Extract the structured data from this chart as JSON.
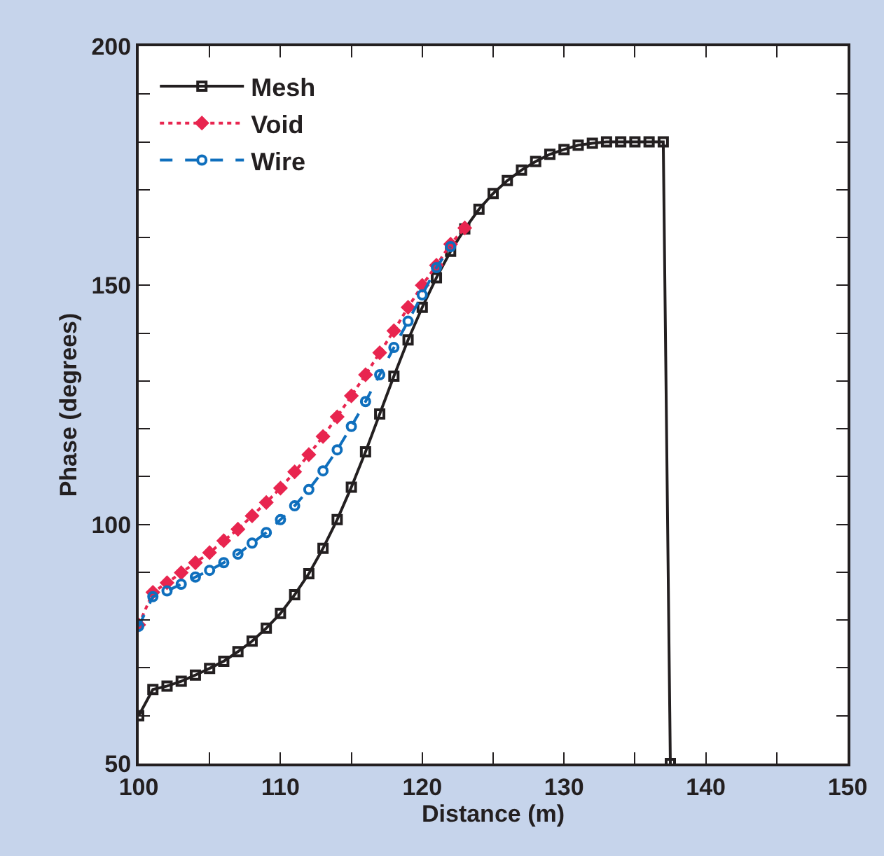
{
  "chart_data": {
    "type": "line",
    "xlabel": "Distance (m)",
    "ylabel": "Phase (degrees)",
    "xlim": [
      100,
      150
    ],
    "ylim": [
      50,
      200
    ],
    "xticks": [
      100,
      {
        "value": 105,
        "label": null
      },
      110,
      {
        "value": 115,
        "label": null
      },
      120,
      {
        "value": 125,
        "label": null
      },
      130,
      {
        "value": 135,
        "label": null
      },
      140,
      {
        "value": 145,
        "label": null
      },
      150
    ],
    "yticks": [
      50,
      {
        "value": 60,
        "label": null
      },
      {
        "value": 70,
        "label": null
      },
      {
        "value": 80,
        "label": null
      },
      {
        "value": 90,
        "label": null
      },
      100,
      {
        "value": 110,
        "label": null
      },
      {
        "value": 120,
        "label": null
      },
      {
        "value": 130,
        "label": null
      },
      {
        "value": 140,
        "label": null
      },
      150,
      {
        "value": 160,
        "label": null
      },
      {
        "value": 170,
        "label": null
      },
      {
        "value": 180,
        "label": null
      },
      {
        "value": 190,
        "label": null
      },
      200
    ],
    "legend": "top left",
    "series": [
      {
        "name": "Mesh",
        "color": "#231f20",
        "marker": "square",
        "line_style": "solid",
        "x": [
          100,
          101,
          102,
          103,
          104,
          105,
          106,
          107,
          108,
          109,
          110,
          111,
          112,
          113,
          114,
          115,
          116,
          117,
          118,
          119,
          120,
          121,
          122,
          123,
          124,
          125,
          126,
          127,
          128,
          129,
          130,
          131,
          132,
          133,
          134,
          135,
          136,
          137,
          137.5
        ],
        "values": [
          60,
          65.5,
          66.2,
          67.2,
          68.5,
          69.9,
          71.4,
          73.4,
          75.6,
          78.3,
          81.4,
          85.3,
          89.7,
          95.0,
          101.0,
          107.8,
          115.2,
          123.1,
          131.0,
          138.6,
          145.4,
          151.6,
          157.1,
          161.8,
          165.9,
          169.2,
          171.9,
          174.1,
          175.9,
          177.4,
          178.4,
          179.3,
          179.7,
          180,
          180,
          180,
          180,
          180,
          50
        ]
      },
      {
        "name": "Void",
        "color": "#e8254f",
        "marker": "diamond",
        "line_style": "dotted",
        "x": [
          100,
          101,
          102,
          103,
          104,
          105,
          106,
          107,
          108,
          109,
          110,
          111,
          112,
          113,
          114,
          115,
          116,
          117,
          118,
          119,
          120,
          121,
          122,
          123
        ],
        "values": [
          79,
          85.8,
          87.8,
          89.9,
          92.0,
          94.1,
          96.6,
          99.0,
          101.8,
          104.6,
          107.6,
          111.0,
          114.6,
          118.4,
          122.5,
          126.9,
          131.3,
          135.9,
          140.5,
          145.4,
          150.0,
          154.2,
          158.6,
          162
        ]
      },
      {
        "name": "Wire",
        "color": "#0f6fbd",
        "marker": "circle",
        "line_style": "dashed",
        "x": [
          100,
          101,
          102,
          103,
          104,
          105,
          106,
          107,
          108,
          109,
          110,
          111,
          112,
          113,
          114,
          115,
          116,
          117,
          118,
          119,
          120,
          121,
          122
        ],
        "values": [
          78.7,
          84.9,
          86.1,
          87.5,
          89.0,
          90.4,
          92.0,
          93.8,
          96.1,
          98.3,
          101.0,
          103.9,
          107.3,
          111.2,
          115.6,
          120.5,
          125.7,
          131.3,
          137.0,
          142.5,
          148.0,
          153.7,
          158.1
        ]
      }
    ]
  }
}
